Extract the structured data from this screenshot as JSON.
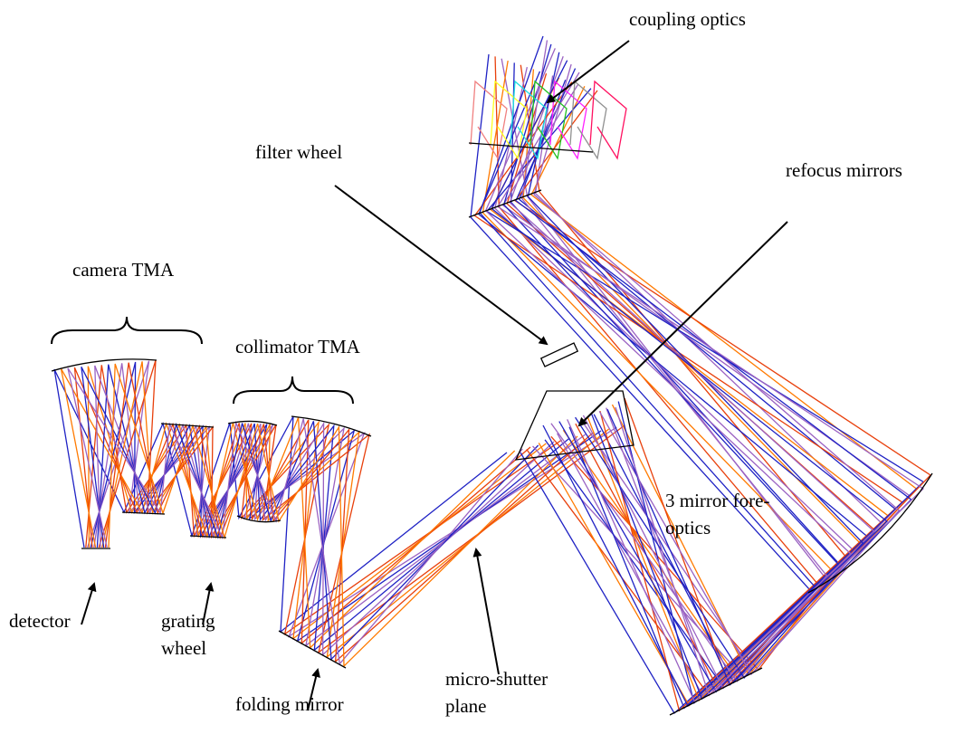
{
  "labels": [
    {
      "lines": [
        "coupling optics"
      ]
    },
    {
      "lines": [
        "filter wheel"
      ]
    },
    {
      "lines": [
        "refocus mirrors"
      ]
    },
    {
      "lines": [
        "camera TMA"
      ]
    },
    {
      "lines": [
        "collimator TMA"
      ]
    },
    {
      "lines": [
        "3 mirror fore-",
        "optics"
      ]
    },
    {
      "lines": [
        "detector"
      ]
    },
    {
      "lines": [
        "grating",
        "wheel"
      ]
    },
    {
      "lines": [
        "folding mirror"
      ]
    },
    {
      "lines": [
        "micro-shutter",
        "plane"
      ]
    }
  ]
}
